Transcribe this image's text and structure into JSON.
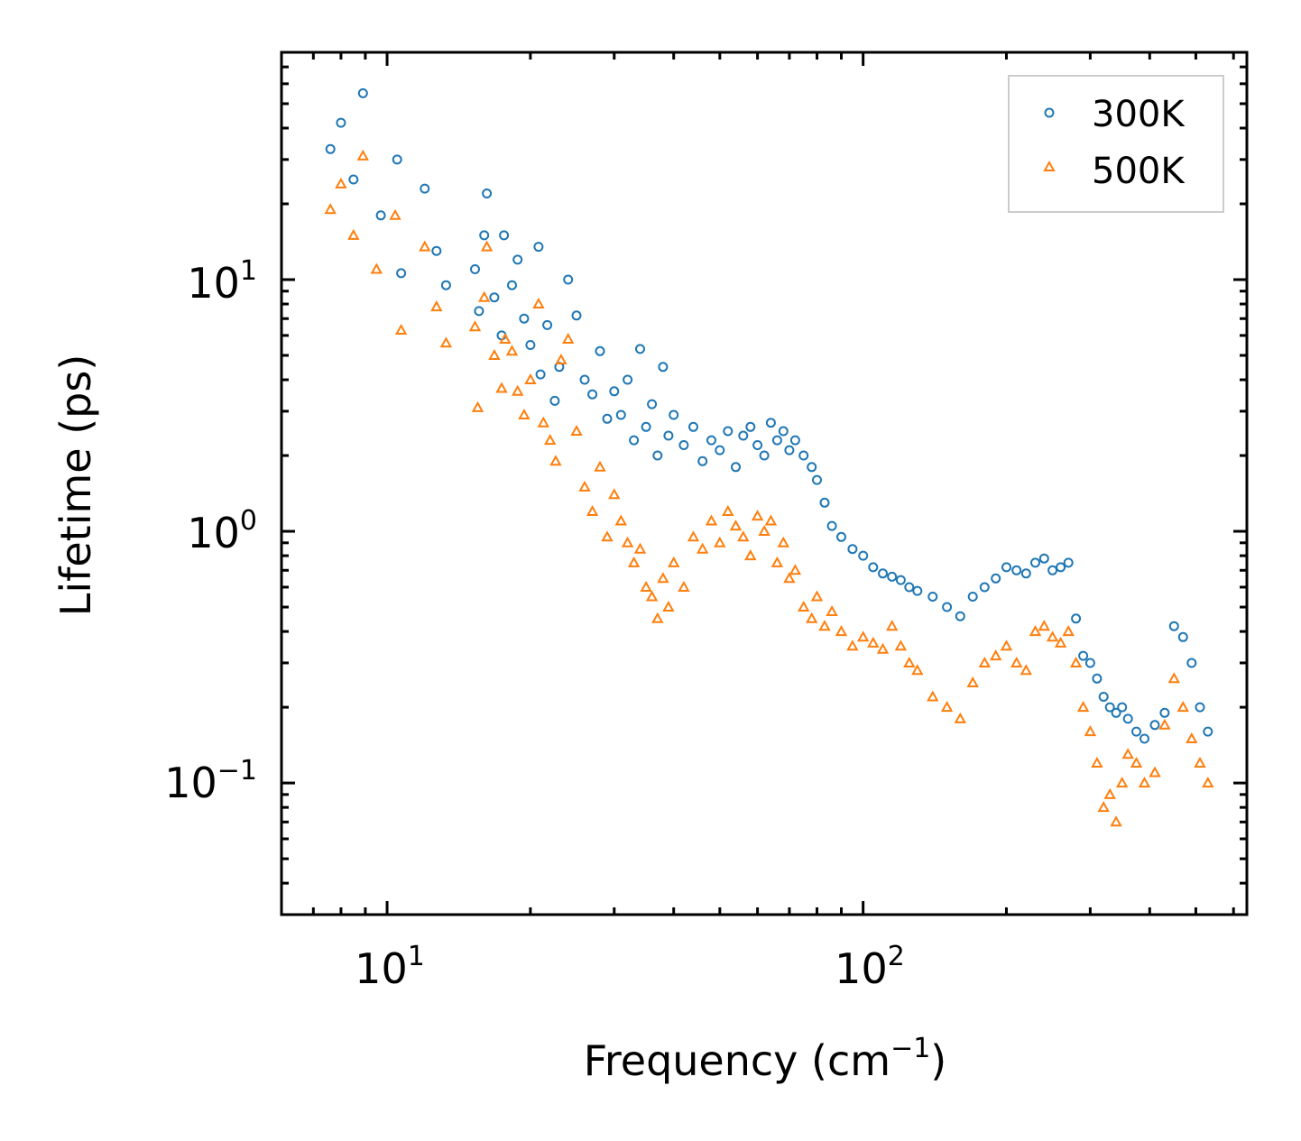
{
  "chart_data": {
    "type": "scatter",
    "xscale": "log",
    "yscale": "log",
    "xlabel": "Frequency (cm",
    "xlabel_sup": "−1",
    "xlabel_close": ")",
    "ylabel": "Lifetime (ps)",
    "xlim": [
      6,
      640
    ],
    "ylim": [
      0.03,
      80
    ],
    "x_tick_labels": [
      {
        "value": 10,
        "base": "10",
        "exp": "1"
      },
      {
        "value": 100,
        "base": "10",
        "exp": "2"
      }
    ],
    "y_tick_labels": [
      {
        "value": 10,
        "base": "10",
        "exp": "1"
      },
      {
        "value": 1,
        "base": "10",
        "exp": "0"
      },
      {
        "value": 0.1,
        "base": "10",
        "exp": "−1"
      }
    ],
    "legend": {
      "position": "top-right",
      "entries": [
        "300K",
        "500K"
      ]
    },
    "series": [
      {
        "name": "300K",
        "marker": "circle",
        "color": "#1f77b4",
        "x": [
          7.6,
          8.0,
          8.5,
          8.9,
          9.7,
          10.5,
          10.7,
          12.0,
          12.7,
          13.3,
          15.3,
          15.6,
          16.0,
          16.2,
          16.8,
          17.4,
          17.6,
          18.3,
          18.8,
          19.4,
          20.0,
          20.8,
          21.0,
          21.7,
          22.5,
          23.0,
          24.0,
          25.0,
          26.0,
          27.0,
          28.0,
          29.0,
          30.0,
          31.0,
          32.0,
          33.0,
          34.0,
          35.0,
          36.0,
          37.0,
          38.0,
          39.0,
          40.0,
          42.0,
          44.0,
          46.0,
          48.0,
          50.0,
          52.0,
          54.0,
          56.0,
          58.0,
          60.0,
          62.0,
          64.0,
          66.0,
          68.0,
          70.0,
          72.0,
          75.0,
          78.0,
          80.0,
          83.0,
          86.0,
          90.0,
          95.0,
          100.0,
          105.0,
          110.0,
          115.0,
          120.0,
          125.0,
          130.0,
          140.0,
          150.0,
          160.0,
          170.0,
          180.0,
          190.0,
          200.0,
          210.0,
          220.0,
          230.0,
          240.0,
          250.0,
          260.0,
          270.0,
          280.0,
          290.0,
          300.0,
          310.0,
          320.0,
          330.0,
          340.0,
          350.0,
          360.0,
          375.0,
          390.0,
          410.0,
          430.0,
          450.0,
          470.0,
          490.0,
          510.0,
          530.0
        ],
        "y": [
          33,
          42,
          25,
          55,
          18,
          30,
          10.6,
          23,
          13,
          9.5,
          11,
          7.5,
          15,
          22,
          8.5,
          6.0,
          15,
          9.5,
          12,
          7.0,
          5.5,
          13.5,
          4.2,
          6.6,
          3.3,
          4.5,
          10,
          7.2,
          4.0,
          3.5,
          5.2,
          2.8,
          3.6,
          2.9,
          4.0,
          2.3,
          5.3,
          2.6,
          3.2,
          2.0,
          4.5,
          2.4,
          2.9,
          2.2,
          2.6,
          1.9,
          2.3,
          2.1,
          2.5,
          1.8,
          2.4,
          2.6,
          2.2,
          2.0,
          2.7,
          2.3,
          2.5,
          2.1,
          2.3,
          2.0,
          1.8,
          1.6,
          1.3,
          1.05,
          0.95,
          0.85,
          0.8,
          0.72,
          0.68,
          0.66,
          0.64,
          0.6,
          0.58,
          0.55,
          0.5,
          0.46,
          0.55,
          0.6,
          0.65,
          0.72,
          0.7,
          0.68,
          0.75,
          0.78,
          0.7,
          0.72,
          0.75,
          0.45,
          0.32,
          0.3,
          0.26,
          0.22,
          0.2,
          0.19,
          0.2,
          0.18,
          0.16,
          0.15,
          0.17,
          0.19,
          0.42,
          0.38,
          0.3,
          0.2,
          0.16
        ]
      },
      {
        "name": "500K",
        "marker": "triangle",
        "color": "#ff7f0e",
        "x": [
          7.6,
          8.0,
          8.5,
          8.9,
          9.5,
          10.4,
          10.7,
          12.0,
          12.7,
          13.3,
          15.3,
          15.5,
          16.0,
          16.2,
          16.8,
          17.4,
          17.7,
          18.3,
          18.8,
          19.4,
          20.0,
          20.8,
          21.3,
          22.0,
          22.6,
          23.2,
          24.0,
          25.0,
          26.0,
          27.0,
          28.0,
          29.0,
          30.0,
          31.0,
          32.0,
          33.0,
          34.0,
          35.0,
          36.0,
          37.0,
          38.0,
          39.0,
          40.0,
          42.0,
          44.0,
          46.0,
          48.0,
          50.0,
          52.0,
          54.0,
          56.0,
          58.0,
          60.0,
          62.0,
          64.0,
          66.0,
          68.0,
          70.0,
          72.0,
          75.0,
          78.0,
          80.0,
          83.0,
          86.0,
          90.0,
          95.0,
          100.0,
          105.0,
          110.0,
          115.0,
          120.0,
          125.0,
          130.0,
          140.0,
          150.0,
          160.0,
          170.0,
          180.0,
          190.0,
          200.0,
          210.0,
          220.0,
          230.0,
          240.0,
          250.0,
          260.0,
          270.0,
          280.0,
          290.0,
          300.0,
          310.0,
          320.0,
          330.0,
          340.0,
          350.0,
          360.0,
          375.0,
          390.0,
          410.0,
          430.0,
          450.0,
          470.0,
          490.0,
          510.0,
          530.0
        ],
        "y": [
          19,
          24,
          15,
          31,
          11,
          18,
          6.3,
          13.5,
          7.8,
          5.6,
          6.5,
          3.1,
          8.5,
          13.5,
          5.0,
          3.7,
          5.8,
          5.2,
          3.6,
          2.9,
          4.0,
          8.0,
          2.7,
          2.3,
          1.9,
          4.8,
          5.8,
          2.5,
          1.5,
          1.2,
          1.8,
          0.95,
          1.4,
          1.1,
          0.9,
          0.75,
          0.85,
          0.6,
          0.55,
          0.45,
          0.65,
          0.5,
          0.75,
          0.6,
          0.95,
          0.85,
          1.1,
          0.9,
          1.2,
          1.05,
          0.95,
          0.8,
          1.15,
          1.0,
          1.1,
          0.75,
          0.9,
          0.65,
          0.7,
          0.5,
          0.45,
          0.55,
          0.42,
          0.48,
          0.4,
          0.35,
          0.38,
          0.36,
          0.34,
          0.42,
          0.35,
          0.3,
          0.28,
          0.22,
          0.2,
          0.18,
          0.25,
          0.3,
          0.32,
          0.35,
          0.3,
          0.28,
          0.4,
          0.42,
          0.38,
          0.36,
          0.4,
          0.3,
          0.2,
          0.16,
          0.12,
          0.08,
          0.09,
          0.07,
          0.1,
          0.13,
          0.12,
          0.1,
          0.11,
          0.17,
          0.26,
          0.2,
          0.15,
          0.12,
          0.1
        ]
      }
    ]
  }
}
